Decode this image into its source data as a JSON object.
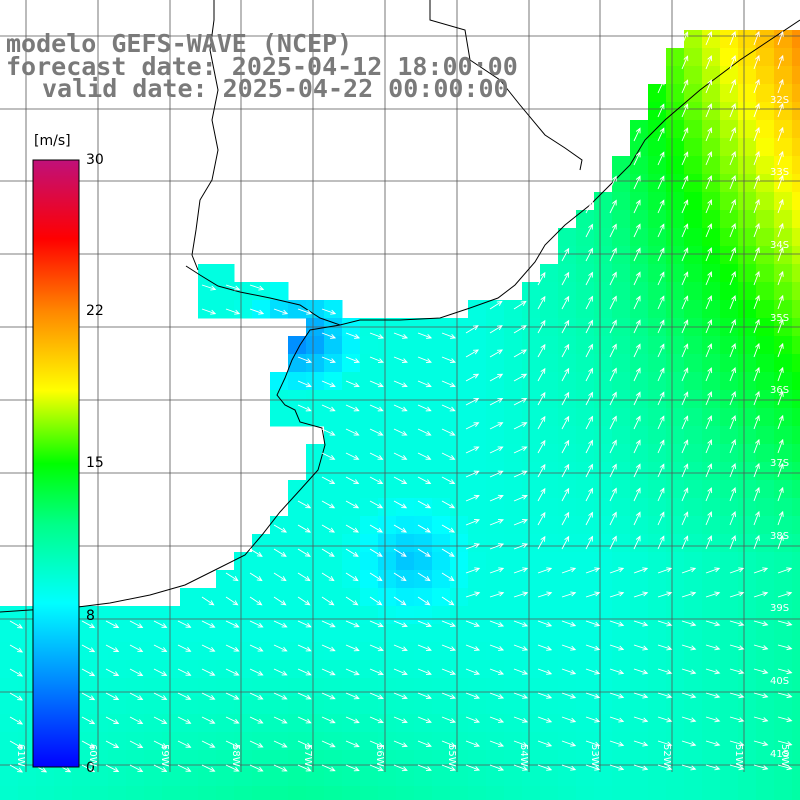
{
  "title": {
    "model_line": "modelo GEFS-WAVE (NCEP)",
    "forecast_line": "forecast date: 2025-04-12 18:00:00",
    "valid_line": "valid date: 2025-04-22 00:00:00"
  },
  "colorbar": {
    "unit": "[m/s]",
    "min": 0,
    "max": 30,
    "ticks": [
      "30",
      "22",
      "15",
      "8",
      "0"
    ],
    "tick_values": [
      30,
      22,
      15,
      8,
      0
    ],
    "colors": [
      "#0000ff",
      "#00bfff",
      "#00ffff",
      "#00ff00",
      "#ffff00",
      "#ffa500",
      "#ff0000",
      "#c71585"
    ]
  },
  "latitude_labels": [
    "32S",
    "33S",
    "34S",
    "35S",
    "36S",
    "37S",
    "38S",
    "39S",
    "40S",
    "41S"
  ],
  "longitude_labels": [
    "61W",
    "60W",
    "59W",
    "58W",
    "57W",
    "56W",
    "55W",
    "54W",
    "53W",
    "52W",
    "51W",
    "50W"
  ],
  "colors": {
    "land": "#ffffff",
    "coast": "#000000",
    "grid": "#555555",
    "arrow": "#ffffff",
    "title_text": "#7a7a7a"
  },
  "map": {
    "variable": "wind speed and direction",
    "lat_range": [
      "31S",
      "41S"
    ],
    "lon_range": [
      "61W",
      "50W"
    ]
  }
}
